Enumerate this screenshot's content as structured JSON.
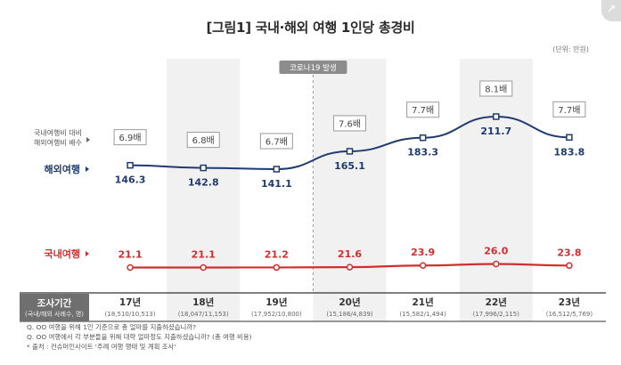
{
  "title": "[그림1] 국내·해외 여행 1인당 총경비",
  "unit": "(단위: 만원)",
  "corner_icon": "expand-icon",
  "chart_data": {
    "type": "line",
    "categories": [
      "17년",
      "18년",
      "19년",
      "20년",
      "21년",
      "22년",
      "23년"
    ],
    "category_samples": [
      "(18,510/10,513)",
      "(18,047/11,153)",
      "(17,952/10,800)",
      "(15,186/4,839)",
      "(15,582/1,494)",
      "(17,996/2,115)",
      "(16,512/5,769)"
    ],
    "series": [
      {
        "name": "해외여행",
        "color": "#1f3b70",
        "values": [
          146.3,
          142.8,
          141.1,
          165.1,
          183.3,
          211.7,
          183.8
        ],
        "labels": [
          "146.3",
          "142.8",
          "141.1",
          "165.1",
          "183.3",
          "211.7",
          "183.8"
        ]
      },
      {
        "name": "국내여행",
        "color": "#d12f2f",
        "values": [
          21.1,
          21.1,
          21.2,
          21.6,
          23.9,
          26.0,
          23.8
        ],
        "labels": [
          "21.1",
          "21.1",
          "21.2",
          "21.6",
          "23.9",
          "26.0",
          "23.8"
        ]
      }
    ],
    "ratio_label": [
      "국내여행비 대비",
      "해외여행비 배수"
    ],
    "ratio_values": [
      "6.9배",
      "6.8배",
      "6.7배",
      "7.6배",
      "7.7배",
      "8.1배",
      "7.7배"
    ],
    "annotation": "코로나19 발생",
    "axis_title": "조사기간",
    "axis_subtitle": "(국내/해외 사례수, 명)"
  },
  "notes": [
    "Q. OO 여행을 위해 1인 기준으로 총 얼마를 지출하셨습니까?",
    "Q. OO 여행에서 각 부분들을 위해 대략 얼마정도 지출하셨습니까? (총 여행 비용)",
    "* 출처 : 컨슈머인사이트 '주례 여행 행태 및 계획 조사'"
  ]
}
